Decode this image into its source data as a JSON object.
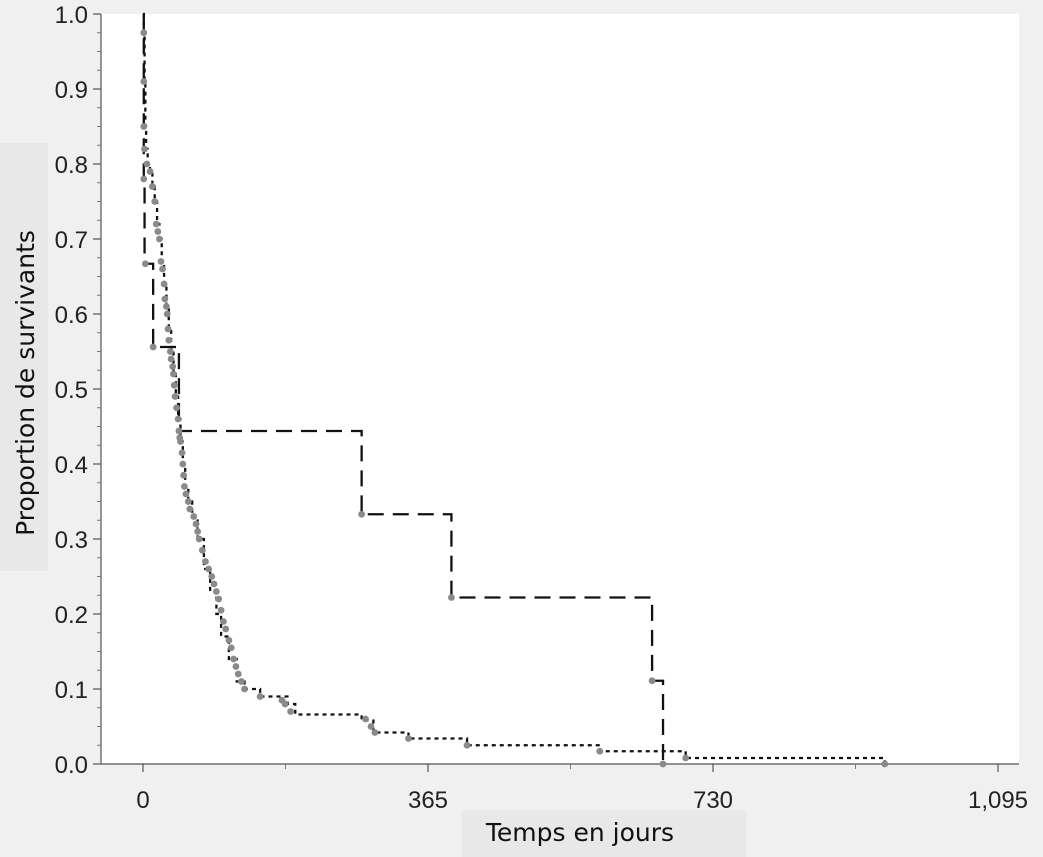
{
  "chart_data": {
    "type": "line",
    "subtype": "kaplan-meier step",
    "title": "",
    "xlabel": "Temps en jours",
    "ylabel": "Proportion de survivants",
    "xlim": [
      -35,
      1095
    ],
    "ylim": [
      0,
      1
    ],
    "x_ticks": [
      0,
      365,
      730,
      1095
    ],
    "x_tick_labels": [
      "0",
      "365",
      "730",
      "1,095"
    ],
    "y_ticks": [
      0,
      0.1,
      0.2,
      0.3,
      0.4,
      0.5,
      0.6,
      0.7,
      0.8,
      0.9,
      1.0
    ],
    "y_tick_labels": [
      "0.0",
      "0.1",
      "0.2",
      "0.3",
      "0.4",
      "0.5",
      "0.6",
      "0.7",
      "0.8",
      "0.9",
      "1.0"
    ],
    "grid": false,
    "legend": "none",
    "series": [
      {
        "style": "dashed",
        "color": "#111111",
        "points": [
          [
            0,
            1.0
          ],
          [
            1,
            0.778
          ],
          [
            2,
            0.667
          ],
          [
            13,
            0.556
          ],
          [
            46,
            0.444
          ],
          [
            280,
            0.333
          ],
          [
            395,
            0.222
          ],
          [
            652,
            0.111
          ],
          [
            666,
            0.0
          ]
        ]
      },
      {
        "style": "dotted",
        "color": "#111111",
        "points": [
          [
            0,
            1.0
          ],
          [
            1,
            0.975
          ],
          [
            2,
            0.91
          ],
          [
            3,
            0.85
          ],
          [
            4,
            0.82
          ],
          [
            6,
            0.8
          ],
          [
            9,
            0.79
          ],
          [
            12,
            0.77
          ],
          [
            15,
            0.75
          ],
          [
            18,
            0.72
          ],
          [
            21,
            0.7
          ],
          [
            24,
            0.67
          ],
          [
            27,
            0.64
          ],
          [
            30,
            0.61
          ],
          [
            33,
            0.58
          ],
          [
            36,
            0.55
          ],
          [
            39,
            0.52
          ],
          [
            42,
            0.49
          ],
          [
            45,
            0.46
          ],
          [
            48,
            0.43
          ],
          [
            51,
            0.4
          ],
          [
            54,
            0.37
          ],
          [
            58,
            0.35
          ],
          [
            63,
            0.33
          ],
          [
            70,
            0.3
          ],
          [
            78,
            0.26
          ],
          [
            86,
            0.23
          ],
          [
            94,
            0.2
          ],
          [
            100,
            0.17
          ],
          [
            110,
            0.14
          ],
          [
            120,
            0.11
          ],
          [
            130,
            0.1
          ],
          [
            150,
            0.09
          ],
          [
            185,
            0.08
          ],
          [
            195,
            0.066
          ],
          [
            280,
            0.058
          ],
          [
            295,
            0.042
          ],
          [
            340,
            0.034
          ],
          [
            415,
            0.025
          ],
          [
            585,
            0.017
          ],
          [
            695,
            0.008
          ],
          [
            950,
            0.0
          ]
        ]
      }
    ],
    "censor_marks": [
      [
        1,
        0.975
      ],
      [
        1,
        0.91
      ],
      [
        1,
        0.85
      ],
      [
        1,
        0.78
      ],
      [
        2,
        0.82
      ],
      [
        3,
        0.667
      ],
      [
        5,
        0.8
      ],
      [
        9,
        0.79
      ],
      [
        12,
        0.77
      ],
      [
        15,
        0.75
      ],
      [
        17,
        0.72
      ],
      [
        19,
        0.71
      ],
      [
        21,
        0.7
      ],
      [
        23,
        0.67
      ],
      [
        25,
        0.66
      ],
      [
        27,
        0.64
      ],
      [
        28,
        0.62
      ],
      [
        30,
        0.61
      ],
      [
        31,
        0.6
      ],
      [
        32,
        0.58
      ],
      [
        13,
        0.556
      ],
      [
        33,
        0.565
      ],
      [
        35,
        0.55
      ],
      [
        36,
        0.54
      ],
      [
        38,
        0.53
      ],
      [
        39,
        0.52
      ],
      [
        40,
        0.505
      ],
      [
        41,
        0.49
      ],
      [
        43,
        0.475
      ],
      [
        45,
        0.46
      ],
      [
        46,
        0.444
      ],
      [
        47,
        0.435
      ],
      [
        48,
        0.43
      ],
      [
        50,
        0.415
      ],
      [
        51,
        0.4
      ],
      [
        52,
        0.385
      ],
      [
        53,
        0.37
      ],
      [
        55,
        0.36
      ],
      [
        58,
        0.35
      ],
      [
        60,
        0.34
      ],
      [
        65,
        0.33
      ],
      [
        68,
        0.32
      ],
      [
        70,
        0.31
      ],
      [
        72,
        0.3
      ],
      [
        76,
        0.285
      ],
      [
        80,
        0.27
      ],
      [
        84,
        0.26
      ],
      [
        88,
        0.25
      ],
      [
        91,
        0.24
      ],
      [
        94,
        0.23
      ],
      [
        97,
        0.22
      ],
      [
        100,
        0.205
      ],
      [
        103,
        0.19
      ],
      [
        106,
        0.18
      ],
      [
        110,
        0.165
      ],
      [
        113,
        0.155
      ],
      [
        116,
        0.14
      ],
      [
        119,
        0.13
      ],
      [
        122,
        0.12
      ],
      [
        126,
        0.11
      ],
      [
        130,
        0.1
      ],
      [
        150,
        0.09
      ],
      [
        178,
        0.085
      ],
      [
        182,
        0.08
      ],
      [
        189,
        0.07
      ],
      [
        285,
        0.06
      ],
      [
        292,
        0.05
      ],
      [
        297,
        0.042
      ],
      [
        340,
        0.034
      ],
      [
        415,
        0.025
      ],
      [
        585,
        0.017
      ],
      [
        652,
        0.111
      ],
      [
        666,
        0.0
      ],
      [
        695,
        0.008
      ],
      [
        950,
        0.0
      ],
      [
        280,
        0.333
      ],
      [
        395,
        0.222
      ]
    ]
  }
}
